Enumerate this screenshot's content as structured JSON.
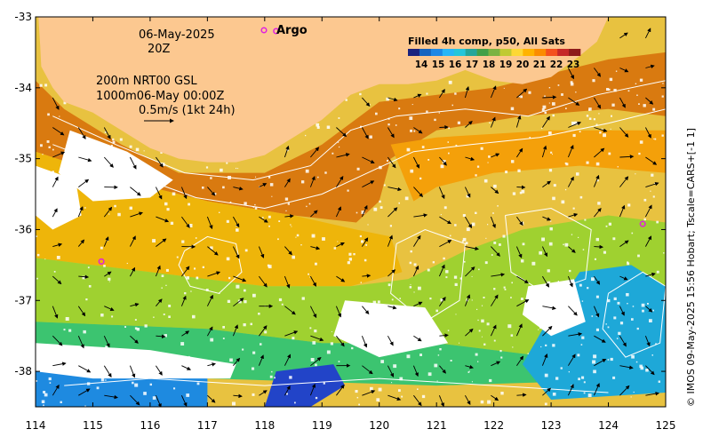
{
  "map": {
    "lon_range": [
      114,
      125
    ],
    "lat_range": [
      -38.5,
      -33
    ],
    "lon_ticks": [
      114,
      115,
      116,
      117,
      118,
      119,
      120,
      121,
      122,
      123,
      124,
      125
    ],
    "lat_ticks": [
      -33,
      -34,
      -35,
      -36,
      -37,
      -38
    ],
    "x_tick_labels": [
      "114",
      "115",
      "116",
      "117",
      "118",
      "119",
      "120",
      "121",
      "122",
      "123",
      "124",
      "125"
    ],
    "y_tick_labels": [
      "-33",
      "-34",
      "-35",
      "-36",
      "-37",
      "-38"
    ],
    "land_color": "#fcc890",
    "coastline": [
      [
        114.05,
        -33.0
      ],
      [
        114.08,
        -33.4
      ],
      [
        114.1,
        -33.7
      ],
      [
        114.3,
        -34.0
      ],
      [
        114.5,
        -34.2
      ],
      [
        115.0,
        -34.35
      ],
      [
        115.5,
        -34.6
      ],
      [
        116.0,
        -34.85
      ],
      [
        116.5,
        -35.0
      ],
      [
        117.0,
        -35.05
      ],
      [
        117.5,
        -35.05
      ],
      [
        118.0,
        -34.95
      ],
      [
        118.5,
        -34.7
      ],
      [
        119.0,
        -34.45
      ],
      [
        119.5,
        -34.1
      ],
      [
        120.0,
        -33.95
      ],
      [
        120.5,
        -33.95
      ],
      [
        121.0,
        -33.9
      ],
      [
        121.5,
        -33.75
      ],
      [
        122.0,
        -33.9
      ],
      [
        122.5,
        -33.95
      ],
      [
        123.0,
        -33.85
      ],
      [
        123.5,
        -33.55
      ],
      [
        123.8,
        -33.35
      ],
      [
        124.0,
        -33.0
      ]
    ],
    "sst_zones": [
      {
        "color": "#b3410c",
        "pts": [
          [
            114.1,
            -33.0
          ],
          [
            114.8,
            -33.0
          ],
          [
            114.9,
            -33.6
          ],
          [
            114.6,
            -34.0
          ],
          [
            114.2,
            -33.7
          ]
        ]
      },
      {
        "color": "#d97a10",
        "pts": [
          [
            114.0,
            -33.9
          ],
          [
            114.5,
            -34.3
          ],
          [
            115.5,
            -34.8
          ],
          [
            116.5,
            -35.2
          ],
          [
            118.0,
            -35.2
          ],
          [
            119.0,
            -34.8
          ],
          [
            120.0,
            -34.2
          ],
          [
            122.0,
            -34.0
          ],
          [
            124.0,
            -33.6
          ],
          [
            125.0,
            -33.5
          ],
          [
            125.0,
            -34.4
          ],
          [
            124.0,
            -34.3
          ],
          [
            122.5,
            -34.4
          ],
          [
            121.0,
            -34.6
          ],
          [
            120.2,
            -35.0
          ],
          [
            120.0,
            -35.6
          ],
          [
            119.6,
            -35.9
          ],
          [
            118.5,
            -35.8
          ],
          [
            117.0,
            -35.6
          ],
          [
            115.5,
            -35.3
          ],
          [
            114.0,
            -34.9
          ]
        ]
      },
      {
        "color": "#eeb50a",
        "pts": [
          [
            114.0,
            -34.9
          ],
          [
            115.5,
            -35.3
          ],
          [
            117.0,
            -35.6
          ],
          [
            118.5,
            -35.8
          ],
          [
            119.6,
            -36.0
          ],
          [
            120.2,
            -36.1
          ],
          [
            120.4,
            -36.6
          ],
          [
            119.5,
            -36.8
          ],
          [
            118.0,
            -36.8
          ],
          [
            116.0,
            -36.6
          ],
          [
            114.0,
            -36.4
          ]
        ]
      },
      {
        "color": "#f4a00a",
        "pts": [
          [
            120.2,
            -34.8
          ],
          [
            121.0,
            -34.7
          ],
          [
            123.0,
            -34.6
          ],
          [
            125.0,
            -34.6
          ],
          [
            125.0,
            -35.2
          ],
          [
            123.5,
            -35.1
          ],
          [
            122.0,
            -35.2
          ],
          [
            121.0,
            -35.4
          ],
          [
            120.6,
            -35.6
          ]
        ]
      },
      {
        "color": "#9fd130",
        "pts": [
          [
            114.0,
            -36.4
          ],
          [
            116.0,
            -36.6
          ],
          [
            118.0,
            -36.8
          ],
          [
            119.5,
            -36.8
          ],
          [
            120.5,
            -36.7
          ],
          [
            121.5,
            -36.3
          ],
          [
            122.5,
            -36.0
          ],
          [
            124.0,
            -35.8
          ],
          [
            125.0,
            -35.9
          ],
          [
            125.0,
            -37.4
          ],
          [
            123.0,
            -37.8
          ],
          [
            121.0,
            -37.6
          ],
          [
            119.0,
            -37.6
          ],
          [
            117.0,
            -37.4
          ],
          [
            114.0,
            -37.3
          ]
        ]
      },
      {
        "color": "#3cc470",
        "pts": [
          [
            114.0,
            -37.3
          ],
          [
            117.0,
            -37.4
          ],
          [
            119.0,
            -37.6
          ],
          [
            121.0,
            -37.6
          ],
          [
            123.0,
            -37.8
          ],
          [
            125.0,
            -37.4
          ],
          [
            125.0,
            -38.1
          ],
          [
            121.0,
            -38.2
          ],
          [
            117.0,
            -38.1
          ],
          [
            114.0,
            -38.0
          ]
        ]
      },
      {
        "color": "#1ea8d8",
        "pts": [
          [
            123.5,
            -36.6
          ],
          [
            124.4,
            -36.5
          ],
          [
            125.0,
            -36.8
          ],
          [
            125.0,
            -38.3
          ],
          [
            123.0,
            -38.4
          ],
          [
            122.5,
            -37.9
          ],
          [
            123.0,
            -37.2
          ]
        ]
      },
      {
        "color": "#1e8ae0",
        "pts": [
          [
            114.0,
            -38.0
          ],
          [
            117.0,
            -38.1
          ],
          [
            117.0,
            -38.5
          ],
          [
            114.0,
            -38.5
          ]
        ]
      },
      {
        "color": "#2244c8",
        "pts": [
          [
            118.2,
            -38.0
          ],
          [
            119.2,
            -37.9
          ],
          [
            119.4,
            -38.2
          ],
          [
            118.8,
            -38.5
          ],
          [
            118.0,
            -38.5
          ]
        ]
      },
      {
        "color": "#ffffff",
        "pts": [
          [
            114.6,
            -34.6
          ],
          [
            115.6,
            -34.9
          ],
          [
            116.4,
            -35.3
          ],
          [
            116.0,
            -35.55
          ],
          [
            115.0,
            -35.6
          ],
          [
            114.4,
            -35.2
          ]
        ]
      },
      {
        "color": "#ffffff",
        "pts": [
          [
            114.0,
            -35.1
          ],
          [
            114.7,
            -35.3
          ],
          [
            114.8,
            -35.8
          ],
          [
            114.3,
            -36.0
          ],
          [
            114.0,
            -35.8
          ]
        ]
      },
      {
        "color": "#ffffff",
        "pts": [
          [
            114.0,
            -37.6
          ],
          [
            116.0,
            -37.7
          ],
          [
            117.5,
            -37.9
          ],
          [
            117.4,
            -38.1
          ],
          [
            115.0,
            -38.1
          ],
          [
            114.0,
            -38.0
          ]
        ]
      },
      {
        "color": "#ffffff",
        "pts": [
          [
            119.4,
            -37.0
          ],
          [
            120.8,
            -37.1
          ],
          [
            121.2,
            -37.6
          ],
          [
            120.0,
            -37.8
          ],
          [
            119.2,
            -37.5
          ]
        ]
      },
      {
        "color": "#ffffff",
        "pts": [
          [
            122.6,
            -36.8
          ],
          [
            123.4,
            -36.7
          ],
          [
            123.6,
            -37.3
          ],
          [
            123.0,
            -37.5
          ],
          [
            122.5,
            -37.2
          ]
        ]
      }
    ],
    "contours": [
      [
        [
          114.3,
          -34.4
        ],
        [
          115.4,
          -34.8
        ],
        [
          116.6,
          -35.2
        ],
        [
          117.8,
          -35.3
        ],
        [
          118.8,
          -35.1
        ],
        [
          119.5,
          -34.6
        ],
        [
          120.3,
          -34.4
        ],
        [
          121.5,
          -34.3
        ],
        [
          122.6,
          -34.4
        ],
        [
          123.8,
          -34.1
        ],
        [
          125.0,
          -33.9
        ]
      ],
      [
        [
          114.3,
          -34.8
        ],
        [
          115.6,
          -35.2
        ],
        [
          116.8,
          -35.55
        ],
        [
          118.0,
          -35.7
        ],
        [
          119.0,
          -35.5
        ],
        [
          119.8,
          -35.2
        ],
        [
          120.6,
          -34.9
        ],
        [
          121.6,
          -34.8
        ],
        [
          122.8,
          -34.7
        ],
        [
          124.0,
          -34.5
        ],
        [
          125.0,
          -34.3
        ]
      ],
      [
        [
          116.6,
          -36.3
        ],
        [
          117.0,
          -36.1
        ],
        [
          117.5,
          -36.2
        ],
        [
          117.6,
          -36.6
        ],
        [
          117.2,
          -36.9
        ],
        [
          116.7,
          -36.8
        ],
        [
          116.5,
          -36.5
        ],
        [
          116.6,
          -36.3
        ]
      ],
      [
        [
          120.3,
          -36.2
        ],
        [
          120.8,
          -36.0
        ],
        [
          121.5,
          -36.2
        ],
        [
          121.4,
          -37.0
        ],
        [
          120.8,
          -37.3
        ],
        [
          120.2,
          -36.9
        ],
        [
          120.3,
          -36.2
        ]
      ],
      [
        [
          122.2,
          -35.8
        ],
        [
          123.0,
          -35.7
        ],
        [
          123.7,
          -36.0
        ],
        [
          123.6,
          -36.7
        ],
        [
          122.9,
          -36.9
        ],
        [
          122.3,
          -36.6
        ],
        [
          122.2,
          -35.8
        ]
      ],
      [
        [
          124.0,
          -36.9
        ],
        [
          124.6,
          -36.6
        ],
        [
          125.0,
          -36.8
        ],
        [
          124.9,
          -37.6
        ],
        [
          124.3,
          -37.8
        ],
        [
          123.9,
          -37.4
        ],
        [
          124.0,
          -36.9
        ]
      ],
      [
        [
          114.5,
          -38.2
        ],
        [
          116.0,
          -38.1
        ],
        [
          118.0,
          -38.2
        ],
        [
          120.0,
          -38.1
        ],
        [
          122.0,
          -38.2
        ],
        [
          124.0,
          -38.3
        ]
      ]
    ],
    "argo_points": [
      [
        118.2,
        -33.2
      ],
      [
        115.15,
        -36.45
      ],
      [
        124.6,
        -35.92
      ]
    ],
    "annotations": {
      "date": "06-May-2025",
      "hour": "20Z",
      "depth_line": "200m  NRT00 GSL",
      "depth_line2": "1000m06-May 00:00Z",
      "scale_label": "0.5m/s (1kt 24h)",
      "argo_label": "Argo"
    },
    "colorbar": {
      "title": "Filled 4h comp, p50, All Sats",
      "ticks": [
        "14",
        "15",
        "16",
        "17",
        "18",
        "19",
        "20",
        "21",
        "22",
        "23"
      ],
      "colors": [
        "#1a237e",
        "#1565c0",
        "#1e88e5",
        "#29b6f6",
        "#26c6da",
        "#26a69a",
        "#43a047",
        "#7cb342",
        "#c0ca33",
        "#fdd835",
        "#ffb300",
        "#fb8c00",
        "#f4511e",
        "#c62828",
        "#8e1a1a"
      ]
    },
    "credit": "© IMOS 09-May-2025 15:56 Hobart; Tscale=CARS+[-1 1]"
  }
}
